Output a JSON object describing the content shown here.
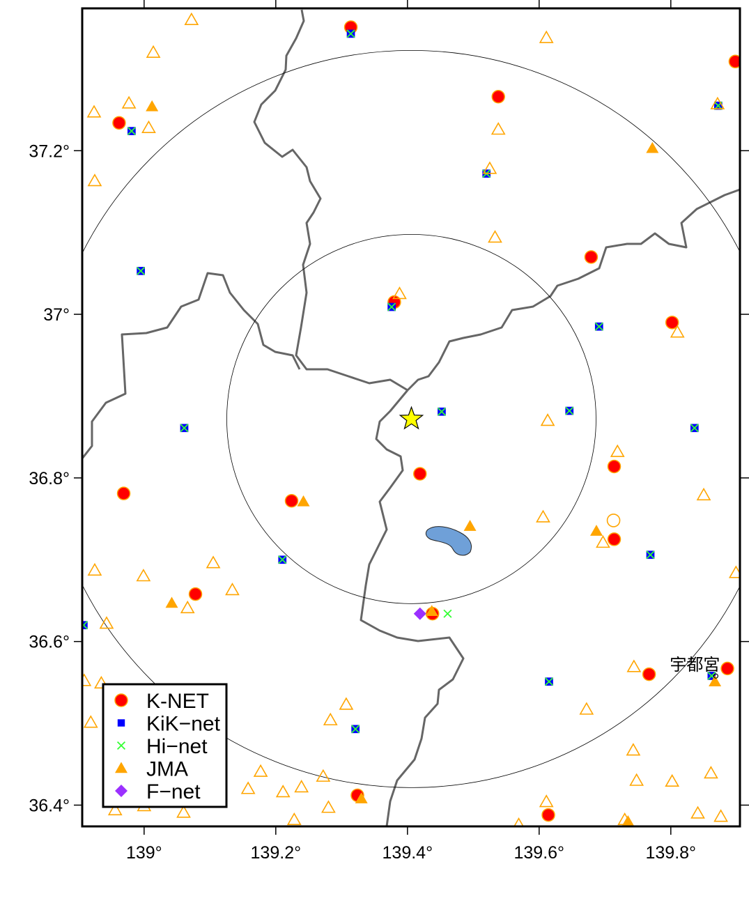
{
  "chart_data": {
    "type": "map",
    "xlim": [
      138.906,
      139.905
    ],
    "ylim": [
      36.374,
      37.374
    ],
    "xticks": [
      {
        "value": 139,
        "label": "139°"
      },
      {
        "value": 139.2,
        "label": "139.2°"
      },
      {
        "value": 139.4,
        "label": "139.4°"
      },
      {
        "value": 139.6,
        "label": "139.6°"
      },
      {
        "value": 139.8,
        "label": "139.8°"
      }
    ],
    "yticks": [
      {
        "value": 36.4,
        "label": "36.4°"
      },
      {
        "value": 36.6,
        "label": "36.6°"
      },
      {
        "value": 36.8,
        "label": "36.8°"
      },
      {
        "value": 37,
        "label": "37°"
      },
      {
        "value": 37.2,
        "label": "37.2°"
      }
    ],
    "epicenter": {
      "lon": 139.406,
      "lat": 36.872,
      "color": "#ffff00"
    },
    "place_label": {
      "text": "宇都宮",
      "lon": 139.843,
      "lat": 36.568
    },
    "series": [
      {
        "name": "K-NET",
        "color": "#ff0000",
        "marker": "circle",
        "lon": [
          139.314,
          139.898,
          139.538,
          138.962,
          139.679,
          139.38,
          139.802,
          139.419,
          139.714,
          138.969,
          139.224,
          139.714,
          139.078,
          139.438,
          139.767,
          139.886,
          139.324,
          139.614
        ],
        "lat": [
          37.351,
          37.309,
          37.266,
          37.234,
          37.07,
          37.015,
          36.99,
          36.805,
          36.814,
          36.781,
          36.772,
          36.725,
          36.658,
          36.634,
          36.56,
          36.567,
          36.412,
          36.388
        ]
      },
      {
        "name": "KiK−net",
        "color": "#0000ff",
        "marker": "square",
        "lon": [
          139.314,
          138.981,
          139.872,
          139.52,
          138.995,
          139.376,
          139.691,
          139.452,
          139.646,
          139.061,
          139.836,
          139.21,
          139.769,
          138.908,
          139.615,
          139.862,
          139.321
        ],
        "lat": [
          37.343,
          37.224,
          37.255,
          37.172,
          37.053,
          37.009,
          36.985,
          36.881,
          36.882,
          36.861,
          36.861,
          36.7,
          36.706,
          36.62,
          36.551,
          36.558,
          36.493
        ]
      },
      {
        "name": "Hi−net",
        "color": "#33ff33",
        "marker": "x",
        "lon": [
          139.314,
          138.981,
          139.872,
          139.52,
          138.995,
          139.376,
          139.691,
          139.452,
          139.646,
          139.061,
          139.836,
          139.21,
          139.769,
          138.908,
          139.615,
          139.862,
          139.321,
          139.461
        ],
        "lat": [
          37.343,
          37.224,
          37.255,
          37.172,
          37.053,
          37.009,
          36.985,
          36.881,
          36.882,
          36.861,
          36.861,
          36.7,
          36.706,
          36.62,
          36.551,
          36.558,
          36.493,
          36.634
        ]
      },
      {
        "name": "JMA",
        "color": "#ffa500",
        "marker": "triangle",
        "lon": [
          139.012,
          139.772,
          139.242,
          139.495,
          139.687,
          139.042,
          139.437,
          139.867,
          139.33,
          139.735
        ],
        "lat": [
          37.254,
          37.203,
          36.771,
          36.741,
          36.735,
          36.647,
          36.637,
          36.551,
          36.408,
          36.38
        ]
      },
      {
        "name": "F−net",
        "color": "#9b30ff",
        "marker": "diamond",
        "lon": [
          139.419
        ],
        "lat": [
          36.634
        ]
      },
      {
        "color": "#ffa500",
        "marker": "triangle",
        "open": true,
        "lon": [
          139.072,
          139.611,
          139.014,
          138.977,
          138.924,
          139.007,
          139.538,
          139.525,
          138.925,
          139.533,
          139.388,
          139.81,
          139.613,
          139.719,
          139.85,
          139.606,
          139.697,
          138.925,
          139.105,
          138.999,
          139.134,
          139.066,
          139.899,
          138.943,
          138.909,
          138.935,
          138.919,
          139.307,
          139.283,
          139.672,
          139.744,
          139.743,
          139.748,
          139.802,
          139.861,
          139.841,
          139.876,
          139.73,
          139.177,
          139.158,
          139.211,
          139.239,
          139.272,
          139.28,
          139.228,
          139.611,
          139.569,
          138.956,
          139.0,
          139.06,
          139.871
        ],
        "lat": [
          37.36,
          37.338,
          37.32,
          37.258,
          37.247,
          37.228,
          37.226,
          37.178,
          37.163,
          37.094,
          37.025,
          36.978,
          36.87,
          36.832,
          36.779,
          36.752,
          36.721,
          36.687,
          36.696,
          36.68,
          36.663,
          36.641,
          36.684,
          36.622,
          36.552,
          36.549,
          36.501,
          36.523,
          36.504,
          36.517,
          36.569,
          36.467,
          36.43,
          36.429,
          36.439,
          36.39,
          36.386,
          36.382,
          36.441,
          36.42,
          36.416,
          36.422,
          36.435,
          36.397,
          36.382,
          36.404,
          36.376,
          36.394,
          36.399,
          36.391,
          37.257
        ]
      },
      {
        "color": "#ffa500",
        "marker": "circle",
        "open": true,
        "lon": [
          139.713
        ],
        "lat": [
          36.748
        ]
      }
    ]
  }
}
